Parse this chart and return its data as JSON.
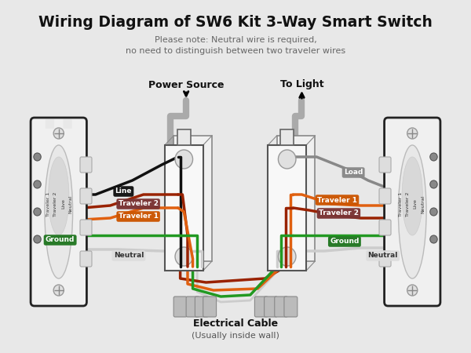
{
  "title": "Wiring Diagram of SW6 Kit 3-Way Smart Switch",
  "subtitle": "Please note: Neutral wire is required,\nno need to distinguish between two traveler wires",
  "bg_color": "#e8e8e8",
  "black": "#111111",
  "dark_gray": "#555555",
  "orange": "#e06010",
  "dark_red": "#992200",
  "green": "#229922",
  "wire_gray": "#aaaaaa",
  "wire_white": "#cccccc",
  "switch_fill": "#f5f5f5",
  "switch_outline": "#222222",
  "label_line_bg": "#111111",
  "label_trav2_bg": "#7a3333",
  "label_trav1_bg": "#cc5500",
  "label_ground_bg": "#227722",
  "label_neutral_bg": "#dddddd",
  "label_load_bg": "#888888",
  "power_source": "Power Source",
  "to_light": "To Light",
  "line_lbl": "Line",
  "trav2_lbl": "Traveler 2",
  "trav1_lbl": "Traveler 1",
  "ground_lbl": "Ground",
  "neutral_lbl": "Neutral",
  "load_lbl": "Load",
  "elec_lbl": "Electrical Cable",
  "elec_sub": "(Usually inside wall)"
}
